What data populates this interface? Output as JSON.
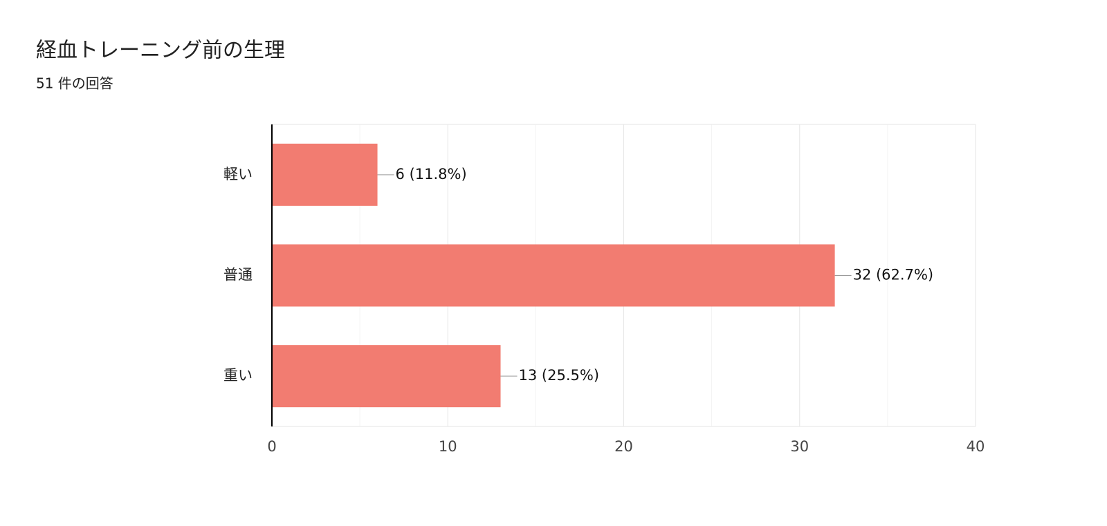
{
  "chart_data": {
    "type": "bar",
    "orientation": "horizontal",
    "title": "経血トレーニング前の生理",
    "subtitle": "51 件の回答",
    "categories": [
      "軽い",
      "普通",
      "重い"
    ],
    "values": [
      6,
      32,
      13
    ],
    "value_labels": [
      "6 (11.8%)",
      "32 (62.7%)",
      "13 (25.5%)"
    ],
    "color": "#f27c71",
    "xlim": [
      0,
      40
    ],
    "xticks": [
      0,
      10,
      20,
      30,
      40
    ],
    "minor_xticks": [
      5,
      15,
      25,
      35
    ],
    "grid": true
  }
}
